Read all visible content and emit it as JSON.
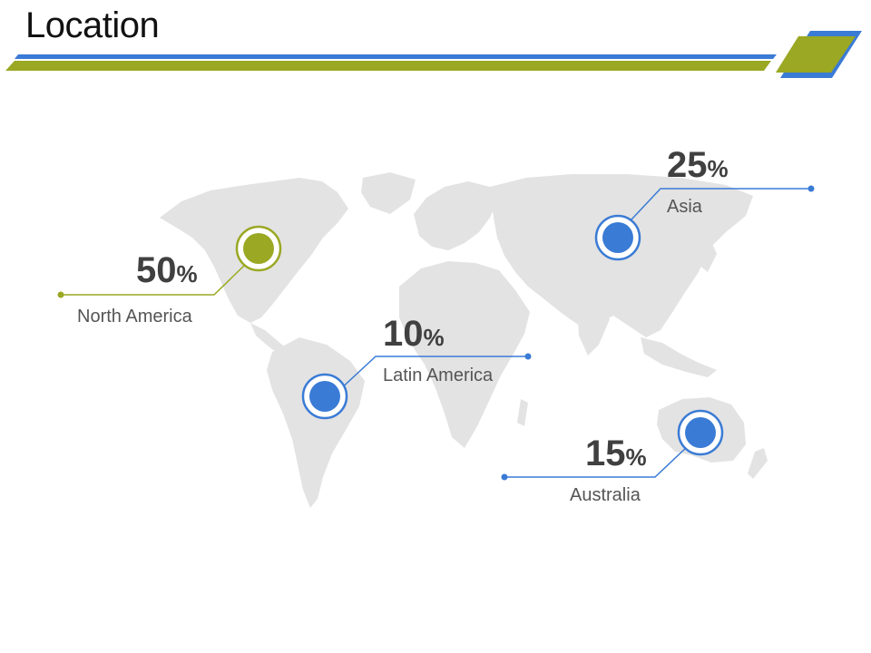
{
  "title": "Location",
  "colors": {
    "green": "#9aa823",
    "blue": "#3a7bd5",
    "map": "#e3e3e3"
  },
  "regions": [
    {
      "id": "north-america",
      "value": "50",
      "unit": "%",
      "label": "North America",
      "color": "green"
    },
    {
      "id": "latin-america",
      "value": "10",
      "unit": "%",
      "label": "Latin America",
      "color": "blue"
    },
    {
      "id": "asia",
      "value": "25",
      "unit": "%",
      "label": "Asia",
      "color": "blue"
    },
    {
      "id": "australia",
      "value": "15",
      "unit": "%",
      "label": "Australia",
      "color": "blue"
    }
  ]
}
